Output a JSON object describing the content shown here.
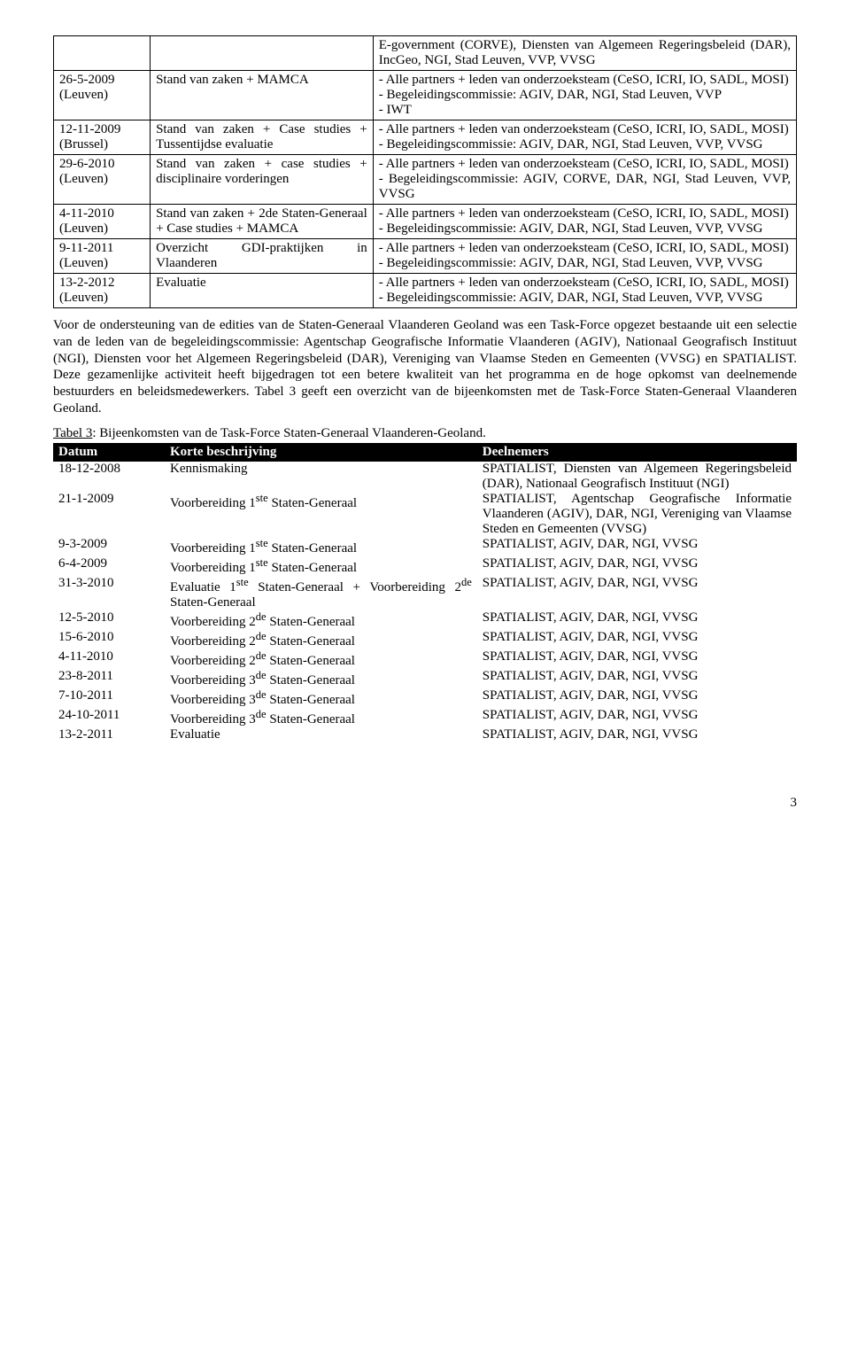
{
  "table1": {
    "rows": [
      {
        "date": "",
        "desc": "",
        "part": "E-government (CORVE), Diensten van Algemeen Regeringsbeleid (DAR), IncGeo, NGI, Stad Leuven, VVP, VVSG"
      },
      {
        "date": "26-5-2009 (Leuven)",
        "desc": "Stand van zaken + MAMCA",
        "part": "- Alle partners + leden van onderzoeksteam (CeSO, ICRI, IO, SADL, MOSI)\n- Begeleidingscommissie: AGIV, DAR, NGI, Stad Leuven, VVP\n- IWT"
      },
      {
        "date": "12-11-2009 (Brussel)",
        "desc": "Stand van zaken + Case studies + Tussentijdse evaluatie",
        "part": "- Alle partners + leden van onderzoeksteam (CeSO, ICRI, IO, SADL, MOSI)\n- Begeleidingscommissie: AGIV, DAR, NGI, Stad Leuven, VVP, VVSG"
      },
      {
        "date": "29-6-2010 (Leuven)",
        "desc": "Stand van zaken + case studies + disciplinaire vorderingen",
        "part": "- Alle partners + leden van onderzoeksteam (CeSO, ICRI, IO, SADL, MOSI)\n- Begeleidingscommissie: AGIV, CORVE, DAR, NGI, Stad Leuven, VVP, VVSG"
      },
      {
        "date": "4-11-2010 (Leuven)",
        "desc": "Stand van zaken + 2de Staten-Generaal + Case studies + MAMCA",
        "part": "- Alle partners + leden van onderzoeksteam (CeSO, ICRI, IO, SADL, MOSI)\n- Begeleidingscommissie: AGIV, DAR, NGI, Stad Leuven, VVP, VVSG"
      },
      {
        "date": "9-11-2011 (Leuven)",
        "desc": "Overzicht GDI-praktijken in Vlaanderen",
        "part": "- Alle partners + leden van onderzoeksteam (CeSO, ICRI, IO, SADL, MOSI)\n- Begeleidingscommissie: AGIV, DAR, NGI, Stad Leuven, VVP, VVSG"
      },
      {
        "date": "13-2-2012 (Leuven)",
        "desc": "Evaluatie",
        "part": "- Alle partners + leden van onderzoeksteam (CeSO, ICRI, IO, SADL, MOSI)\n- Begeleidingscommissie: AGIV, DAR, NGI, Stad Leuven, VVP, VVSG"
      }
    ]
  },
  "paragraph": "Voor de ondersteuning van de edities van de Staten-Generaal Vlaanderen Geoland was een Task-Force opgezet bestaande uit een selectie van de leden van de begeleidingscommissie: Agentschap Geografische Informatie Vlaanderen (AGIV), Nationaal Geografisch Instituut (NGI), Diensten voor het Algemeen Regeringsbeleid (DAR), Vereniging van Vlaamse Steden en Gemeenten (VVSG) en SPATIALIST. Deze gezamenlijke activiteit heeft bijgedragen tot een betere kwaliteit van het programma en de hoge opkomst van deelnemende bestuurders en beleidsmedewerkers. Tabel 3 geeft een overzicht van de bijeenkomsten met de Task-Force Staten-Generaal Vlaanderen Geoland.",
  "table2": {
    "caption_prefix": "Tabel 3",
    "caption_rest": ": Bijeenkomsten van de Task-Force Staten-Generaal Vlaanderen-Geoland.",
    "headers": {
      "date": "Datum",
      "desc": "Korte beschrijving",
      "part": "Deelnemers"
    },
    "rows": [
      {
        "date": "18-12-2008",
        "desc": "Kennismaking",
        "part": "SPATIALIST, Diensten van Algemeen Regeringsbeleid (DAR), Nationaal Geografisch Instituut (NGI)"
      },
      {
        "date": "21-1-2009",
        "desc": "Voorbereiding 1ste Staten-Generaal",
        "part": "SPATIALIST, Agentschap Geografische Informatie Vlaanderen (AGIV), DAR, NGI, Vereniging van Vlaamse Steden en Gemeenten (VVSG)"
      },
      {
        "date": "9-3-2009",
        "desc": "Voorbereiding 1ste Staten-Generaal",
        "part": "SPATIALIST, AGIV, DAR, NGI, VVSG"
      },
      {
        "date": "6-4-2009",
        "desc": "Voorbereiding 1ste Staten-Generaal",
        "part": "SPATIALIST, AGIV, DAR, NGI, VVSG"
      },
      {
        "date": "31-3-2010",
        "desc": "Evaluatie 1ste Staten-Generaal + Voorbereiding 2de Staten-Generaal",
        "part": "SPATIALIST, AGIV, DAR, NGI, VVSG"
      },
      {
        "date": "12-5-2010",
        "desc": "Voorbereiding 2de Staten-Generaal",
        "part": "SPATIALIST, AGIV, DAR, NGI, VVSG"
      },
      {
        "date": "15-6-2010",
        "desc": "Voorbereiding 2de Staten-Generaal",
        "part": "SPATIALIST, AGIV, DAR, NGI, VVSG"
      },
      {
        "date": "4-11-2010",
        "desc": "Voorbereiding 2de Staten-Generaal",
        "part": "SPATIALIST, AGIV, DAR, NGI, VVSG"
      },
      {
        "date": "23-8-2011",
        "desc": "Voorbereiding 3de Staten-Generaal",
        "part": "SPATIALIST, AGIV, DAR, NGI, VVSG"
      },
      {
        "date": "7-10-2011",
        "desc": "Voorbereiding 3de Staten-Generaal",
        "part": "SPATIALIST, AGIV, DAR, NGI, VVSG"
      },
      {
        "date": "24-10-2011",
        "desc": "Voorbereiding 3de Staten-Generaal",
        "part": "SPATIALIST, AGIV, DAR, NGI, VVSG"
      },
      {
        "date": "13-2-2011",
        "desc": "Evaluatie",
        "part": "SPATIALIST, AGIV, DAR, NGI, VVSG"
      }
    ]
  },
  "page_number": "3"
}
